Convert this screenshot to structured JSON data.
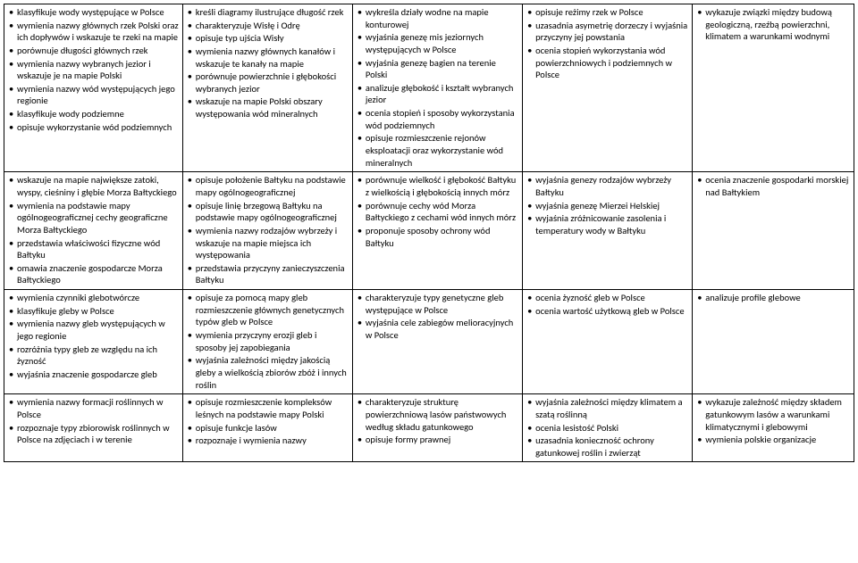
{
  "rows": [
    {
      "c1": [
        "klasyfikuje wody występujące w Polsce",
        "wymienia nazwy głównych rzek Polski oraz ich dopływów i wskazuje te rzeki na mapie",
        "porównuje długości głównych rzek",
        "wymienia nazwy wybranych jezior i wskazuje je na mapie Polski",
        "wymienia nazwy wód występujących jego regionie",
        "klasyfikuje wody podziemne",
        "opisuje wykorzystanie wód podziemnych"
      ],
      "c2": [
        "kreśli diagramy ilustrujące długość rzek",
        "charakteryzuje Wisłę i Odrę",
        "opisuje typ ujścia Wisły",
        "wymienia nazwy głównych kanałów i wskazuje te kanały na mapie",
        "porównuje powierzchnie i głębokości wybranych jezior",
        "wskazuje na mapie Polski obszary występowania wód mineralnych"
      ],
      "c3": [
        "wykreśla działy wodne na mapie konturowej",
        "wyjaśnia genezę mis jeziornych występujących w Polsce",
        "wyjaśnia genezę bagien na terenie Polski",
        "analizuje głębokość i kształt wybranych jezior",
        "ocenia stopień i sposoby wykorzystania wód podziemnych",
        "opisuje rozmieszczenie rejonów eksploatacji oraz wykorzystanie wód mineralnych"
      ],
      "c4": [
        "opisuje reżimy rzek w Polsce",
        "uzasadnia asymetrię dorzeczy i wyjaśnia przyczyny jej powstania",
        "ocenia stopień wykorzystania wód powierzchniowych i podziemnych w Polsce"
      ],
      "c5": [
        "wykazuje związki między budową geologiczną, rzeźbą powierzchni, klimatem a warunkami wodnymi"
      ]
    },
    {
      "c1": [
        "wskazuje na mapie największe zatoki, wyspy, cieśniny i głębie Morza Bałtyckiego",
        "wymienia na podstawie mapy ogólnogeograficznej cechy geograficzne Morza Bałtyckiego",
        "przedstawia właściwości fizyczne wód Bałtyku",
        "omawia znaczenie gospodarcze Morza Bałtyckiego"
      ],
      "c2": [
        "opisuje położenie Bałtyku na podstawie mapy ogólnogeograficznej",
        "opisuje linię brzegową Bałtyku na podstawie mapy ogólnogeograficznej",
        "wymienia nazwy rodzajów wybrzeży i wskazuje na mapie miejsca ich występowania",
        "przedstawia przyczyny zanieczyszczenia Bałtyku"
      ],
      "c3": [
        "porównuje wielkość i głębokość Bałtyku z wielkością i głębokością innych mórz",
        "porównuje cechy wód Morza Bałtyckiego z cechami wód innych mórz",
        "proponuje sposoby ochrony wód Bałtyku"
      ],
      "c4": [
        "wyjaśnia genezy rodzajów wybrzeży Bałtyku",
        "wyjaśnia genezę Mierzei Helskiej",
        "wyjaśnia zróżnicowanie zasolenia i temperatury wody w Bałtyku"
      ],
      "c5": [
        "ocenia znaczenie gospodarki morskiej nad Bałtykiem"
      ]
    },
    {
      "c1": [
        "wymienia czynniki glebotwórcze",
        "klasyfikuje gleby w Polsce",
        "wymienia nazwy gleb występujących w jego regionie",
        "rozróżnia typy gleb ze względu na ich żyzność",
        "wyjaśnia znaczenie gospodarcze gleb"
      ],
      "c2": [
        "opisuje za pomocą mapy gleb rozmieszczenie głównych genetycznych typów gleb w Polsce",
        "wymienia przyczyny erozji gleb i sposoby jej zapobiegania",
        "wyjaśnia zależności między jakością gleby a wielkością zbiorów zbóż i innych roślin"
      ],
      "c3": [
        "charakteryzuje typy genetyczne gleb występujące w Polsce",
        "wyjaśnia cele zabiegów melioracyjnych w Polsce"
      ],
      "c4": [
        "ocenia żyzność gleb w Polsce",
        "ocenia wartość użytkową gleb w Polsce"
      ],
      "c5": [
        "analizuje profile glebowe"
      ]
    },
    {
      "c1": [
        "wymienia nazwy formacji roślinnych w Polsce",
        "rozpoznaje typy zbiorowisk roślinnych w Polsce na zdjęciach i w terenie"
      ],
      "c2": [
        "opisuje rozmieszczenie kompleksów leśnych na podstawie mapy Polski",
        "opisuje funkcje lasów",
        "rozpoznaje i wymienia nazwy"
      ],
      "c3": [
        "charakteryzuje strukturę powierzchniową lasów państwowych według składu gatunkowego",
        "opisuje formy prawnej"
      ],
      "c4": [
        "wyjaśnia zależności między klimatem a szatą roślinną",
        "ocenia lesistość Polski",
        "uzasadnia konieczność ochrony gatunkowej roślin i zwierząt"
      ],
      "c5": [
        "wykazuje zależność między składem gatunkowym lasów a warunkami klimatycznymi i glebowymi",
        "wymienia polskie organizacje"
      ]
    }
  ]
}
